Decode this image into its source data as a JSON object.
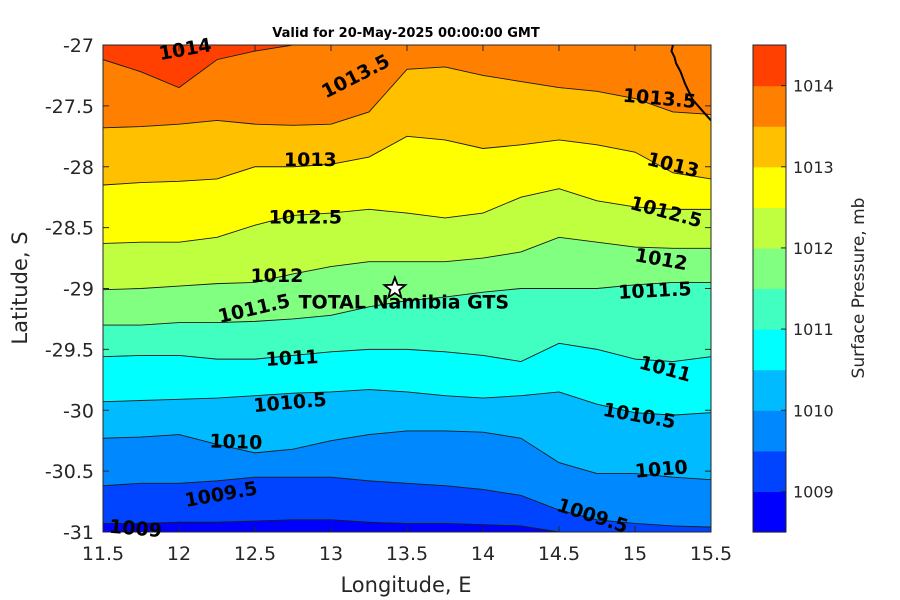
{
  "chart_data": {
    "type": "contour",
    "title": "Valid for 20-May-2025 00:00:00 GMT",
    "xlabel": "Longitude, E",
    "ylabel": "Latitude, S",
    "xlim": [
      11.5,
      15.5
    ],
    "ylim": [
      -31,
      -27
    ],
    "xticks": [
      "11.5",
      "12",
      "12.5",
      "13",
      "13.5",
      "14",
      "14.5",
      "15",
      "15.5"
    ],
    "yticks": [
      "-27",
      "-27.5",
      "-28",
      "-28.5",
      "-29",
      "-29.5",
      "-30",
      "-30.5",
      "-31"
    ],
    "colorbar": {
      "label": "Surface Pressure, mb",
      "range": [
        1008.5,
        1014.5
      ],
      "ticks": [
        "1009",
        "1010",
        "1011",
        "1012",
        "1013",
        "1014"
      ],
      "band_colors": [
        "#0000ff",
        "#0044ff",
        "#0088ff",
        "#00bbff",
        "#00ffff",
        "#40ffc0",
        "#80ff80",
        "#c0ff40",
        "#ffff00",
        "#ffc000",
        "#ff8000",
        "#ff4000",
        "#ff0000"
      ]
    },
    "contours": [
      {
        "level": 1009.0,
        "label": "1009",
        "lat": [
          -30.93,
          -30.93,
          -30.92,
          -30.92,
          -30.91,
          -30.9,
          -30.9,
          -30.92,
          -30.93,
          -30.93,
          -30.94,
          -30.95,
          -31.0,
          -31.0,
          -31.0,
          -31.0,
          -31.0
        ]
      },
      {
        "level": 1009.5,
        "label": "1009.5",
        "lat": [
          -30.62,
          -30.6,
          -30.6,
          -30.58,
          -30.55,
          -30.55,
          -30.55,
          -30.58,
          -30.6,
          -30.62,
          -30.65,
          -30.7,
          -30.82,
          -30.9,
          -30.93,
          -30.95,
          -30.96
        ]
      },
      {
        "level": 1010.0,
        "label": "1010",
        "lat": [
          -30.23,
          -30.22,
          -30.2,
          -30.28,
          -30.35,
          -30.32,
          -30.25,
          -30.2,
          -30.17,
          -30.17,
          -30.18,
          -30.23,
          -30.43,
          -30.52,
          -30.52,
          -30.55,
          -30.57
        ]
      },
      {
        "level": 1010.5,
        "label": "1010.5",
        "lat": [
          -29.93,
          -29.92,
          -29.91,
          -29.9,
          -29.88,
          -29.86,
          -29.85,
          -29.83,
          -29.85,
          -29.88,
          -29.9,
          -29.88,
          -29.85,
          -29.95,
          -30.02,
          -30.04,
          -30.02
        ]
      },
      {
        "level": 1011.0,
        "label": "1011",
        "lat": [
          -29.56,
          -29.55,
          -29.55,
          -29.58,
          -29.58,
          -29.55,
          -29.52,
          -29.5,
          -29.5,
          -29.52,
          -29.55,
          -29.6,
          -29.45,
          -29.5,
          -29.58,
          -29.6,
          -29.56
        ]
      },
      {
        "level": 1011.5,
        "label": "1011.5",
        "lat": [
          -29.3,
          -29.3,
          -29.28,
          -29.28,
          -29.27,
          -29.25,
          -29.22,
          -29.15,
          -29.1,
          -29.07,
          -29.03,
          -29.0,
          -29.0,
          -29.0,
          -28.97,
          -28.95,
          -28.95
        ]
      },
      {
        "level": 1012.0,
        "label": "1012",
        "lat": [
          -29.01,
          -29.0,
          -28.98,
          -28.96,
          -28.95,
          -28.88,
          -28.82,
          -28.78,
          -28.78,
          -28.78,
          -28.75,
          -28.7,
          -28.58,
          -28.62,
          -28.66,
          -28.67,
          -28.67
        ]
      },
      {
        "level": 1012.5,
        "label": "1012.5",
        "lat": [
          -28.63,
          -28.62,
          -28.62,
          -28.58,
          -28.48,
          -28.4,
          -28.38,
          -28.35,
          -28.38,
          -28.42,
          -28.38,
          -28.25,
          -28.18,
          -28.28,
          -28.33,
          -28.35,
          -28.35
        ]
      },
      {
        "level": 1013.0,
        "label": "1013",
        "lat": [
          -28.15,
          -28.13,
          -28.12,
          -28.1,
          -28.0,
          -28.0,
          -27.98,
          -27.92,
          -27.75,
          -27.78,
          -27.85,
          -27.82,
          -27.78,
          -27.82,
          -27.88,
          -28.05,
          -28.1
        ]
      },
      {
        "level": 1013.5,
        "label": "1013.5",
        "lat": [
          -27.68,
          -27.67,
          -27.65,
          -27.62,
          -27.65,
          -27.66,
          -27.65,
          -27.55,
          -27.2,
          -27.18,
          -27.25,
          -27.3,
          -27.35,
          -27.38,
          -27.44,
          -27.55,
          -27.57
        ]
      },
      {
        "level": 1014.0,
        "label": "1014",
        "lat": [
          -27.12,
          -27.22,
          -27.35,
          -27.12,
          -27.05,
          -27.0,
          -27.0,
          -27.0,
          -27.0,
          -27.0,
          -27.0,
          -27.0,
          -27.0,
          -27.0,
          -27.0,
          -27.0,
          -27.0
        ]
      }
    ],
    "contour_lon": [
      11.5,
      11.75,
      12.0,
      12.25,
      12.5,
      12.75,
      13.0,
      13.25,
      13.5,
      13.75,
      14.0,
      14.25,
      14.5,
      14.75,
      15.0,
      15.25,
      15.5
    ],
    "contour_labels": [
      {
        "text": "1014",
        "lon": 11.87,
        "lat": -27.08,
        "angle": -10
      },
      {
        "text": "1013.5",
        "lon": 12.95,
        "lat": -27.4,
        "angle": -27
      },
      {
        "text": "1013.5",
        "lon": 14.92,
        "lat": -27.42,
        "angle": 5
      },
      {
        "text": "1013",
        "lon": 12.69,
        "lat": -27.95,
        "angle": 0
      },
      {
        "text": "1013",
        "lon": 15.08,
        "lat": -27.94,
        "angle": 14
      },
      {
        "text": "1012.5",
        "lon": 12.59,
        "lat": -28.42,
        "angle": 0
      },
      {
        "text": "1012.5",
        "lon": 14.97,
        "lat": -28.3,
        "angle": 15
      },
      {
        "text": "1012",
        "lon": 12.47,
        "lat": -28.9,
        "angle": 0
      },
      {
        "text": "1012",
        "lon": 15.0,
        "lat": -28.73,
        "angle": 10
      },
      {
        "text": "1011.5",
        "lon": 12.26,
        "lat": -29.24,
        "angle": -13
      },
      {
        "text": "1011.5",
        "lon": 14.89,
        "lat": -29.04,
        "angle": -3
      },
      {
        "text": "1011",
        "lon": 12.57,
        "lat": -29.59,
        "angle": -3
      },
      {
        "text": "1011",
        "lon": 15.03,
        "lat": -29.61,
        "angle": 15
      },
      {
        "text": "1010.5",
        "lon": 12.49,
        "lat": -29.97,
        "angle": -5
      },
      {
        "text": "1010.5",
        "lon": 14.79,
        "lat": -30.0,
        "angle": 10
      },
      {
        "text": "1010",
        "lon": 12.2,
        "lat": -30.26,
        "angle": 2
      },
      {
        "text": "1010",
        "lon": 15.0,
        "lat": -30.51,
        "angle": -5
      },
      {
        "text": "1009.5",
        "lon": 12.04,
        "lat": -30.75,
        "angle": -10
      },
      {
        "text": "1009.5",
        "lon": 14.49,
        "lat": -30.78,
        "angle": 18
      },
      {
        "text": "1009",
        "lon": 11.54,
        "lat": -30.96,
        "angle": 5
      }
    ],
    "site": {
      "name": "TOTAL Namibia GTS",
      "lon": 13.42,
      "lat": -29.0
    },
    "coastline": {
      "lon": [
        15.25,
        15.24,
        15.26,
        15.27,
        15.3,
        15.33,
        15.38,
        15.45,
        15.5
      ],
      "lat": [
        -27.0,
        -27.05,
        -27.1,
        -27.15,
        -27.22,
        -27.32,
        -27.45,
        -27.55,
        -27.62
      ]
    }
  }
}
